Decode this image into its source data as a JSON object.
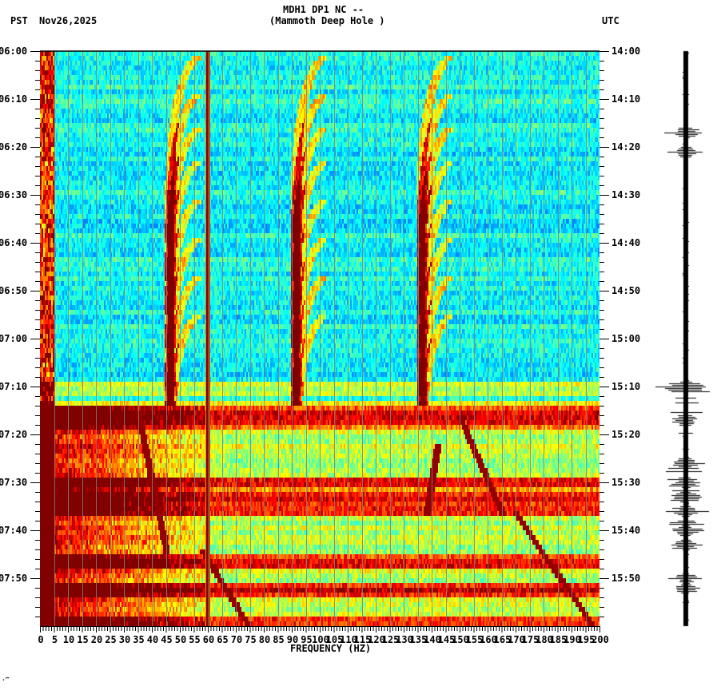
{
  "header": {
    "title_line1": "MDH1 DP1 NC --",
    "title_line2": "(Mammoth Deep Hole )",
    "left_timezone": "PST",
    "date": "Nov26,2025",
    "right_timezone": "UTC"
  },
  "footer_mark": "·‴",
  "chart_data": {
    "type": "heatmap",
    "title": "MDH1 DP1 NC -- (Mammoth Deep Hole )",
    "subtitle": "Spectrogram with seismogram trace",
    "xlabel": "FREQUENCY (HZ)",
    "ylabel_left": "PST",
    "ylabel_right": "UTC",
    "date": "Nov26,2025",
    "x_range": [
      0,
      200
    ],
    "x_ticks": [
      "0",
      "5",
      "10",
      "15",
      "20",
      "25",
      "30",
      "35",
      "40",
      "45",
      "50",
      "55",
      "60",
      "65",
      "70",
      "75",
      "80",
      "85",
      "90",
      "95",
      "100",
      "105",
      "110",
      "115",
      "120",
      "125",
      "130",
      "135",
      "140",
      "145",
      "150",
      "155",
      "160",
      "165",
      "170",
      "175",
      "180",
      "185",
      "190",
      "195",
      "200"
    ],
    "x_minor_tick_step": 1,
    "y_ticks_left": [
      "06:00",
      "06:10",
      "06:20",
      "06:30",
      "06:40",
      "06:50",
      "07:00",
      "07:10",
      "07:20",
      "07:30",
      "07:40",
      "07:50"
    ],
    "y_ticks_right": [
      "14:00",
      "14:10",
      "14:20",
      "14:30",
      "14:40",
      "14:50",
      "15:00",
      "15:10",
      "15:20",
      "15:30",
      "15:40",
      "15:50"
    ],
    "y_range_minutes": [
      0,
      120
    ],
    "y_minor_tick_step_minutes": 2,
    "grid_vertical_every_hz": 5,
    "colormap": [
      "#0000ff",
      "#0080ff",
      "#00ffff",
      "#80ff80",
      "#ffff00",
      "#ff8000",
      "#ff0000",
      "#800000"
    ],
    "features": {
      "persistent_line_hz": 60,
      "low_freq_band_hz": [
        0,
        5
      ],
      "quiet_period_minutes": [
        0,
        74
      ],
      "noisy_period_minutes": [
        74,
        120
      ],
      "horizontal_band_minutes": [
        70,
        74,
        77,
        90,
        93,
        95,
        106,
        112,
        119
      ],
      "descending_curves_start_minutes": [
        0,
        8,
        15,
        22,
        30,
        38,
        46,
        54
      ],
      "sweeping_lines": [
        {
          "hz_start": 35,
          "min_start": 75,
          "hz_end": 45,
          "min_end": 104
        },
        {
          "hz_start": 150,
          "min_start": 76,
          "hz_end": 165,
          "min_end": 96
        },
        {
          "hz_start": 170,
          "min_start": 96,
          "hz_end": 198,
          "min_end": 120
        },
        {
          "hz_start": 58,
          "min_start": 104,
          "hz_end": 75,
          "min_end": 120
        },
        {
          "hz_start": 142,
          "min_start": 82,
          "hz_end": 138,
          "min_end": 96
        }
      ]
    },
    "seismogram": {
      "event_minutes": [
        17,
        21,
        70,
        77,
        86,
        90,
        93,
        96,
        100,
        103,
        110,
        112
      ],
      "largest_event_minute": 70
    }
  }
}
